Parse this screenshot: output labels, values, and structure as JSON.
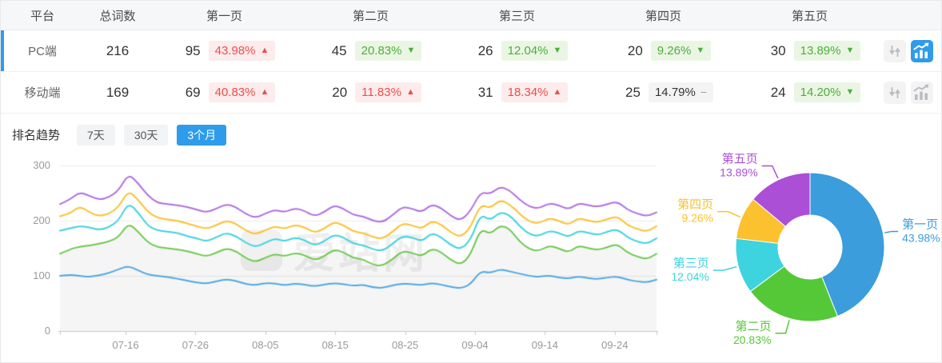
{
  "colors": {
    "accent": "#2f9ceb",
    "up_red": "#ef4c4c",
    "up_red_bg": "#fdecec",
    "down_green": "#4cae3f",
    "down_green_bg": "#eaf6e3",
    "flat_gray_bg": "#f4f4f4"
  },
  "table": {
    "columns": [
      "平台",
      "总词数",
      "第一页",
      "第二页",
      "第三页",
      "第四页",
      "第五页"
    ],
    "rows": [
      {
        "platform": "PC端",
        "total": "216",
        "selected": true,
        "trend_active": true,
        "pages": [
          {
            "count": "95",
            "pct": "43.98%",
            "dir": "up",
            "tone": "red"
          },
          {
            "count": "45",
            "pct": "20.83%",
            "dir": "down",
            "tone": "green"
          },
          {
            "count": "26",
            "pct": "12.04%",
            "dir": "down",
            "tone": "green"
          },
          {
            "count": "20",
            "pct": "9.26%",
            "dir": "down",
            "tone": "green"
          },
          {
            "count": "30",
            "pct": "13.89%",
            "dir": "down",
            "tone": "green"
          }
        ]
      },
      {
        "platform": "移动端",
        "total": "169",
        "selected": false,
        "trend_active": false,
        "pages": [
          {
            "count": "69",
            "pct": "40.83%",
            "dir": "up",
            "tone": "red"
          },
          {
            "count": "20",
            "pct": "11.83%",
            "dir": "up",
            "tone": "red"
          },
          {
            "count": "31",
            "pct": "18.34%",
            "dir": "up",
            "tone": "red"
          },
          {
            "count": "25",
            "pct": "14.79%",
            "dir": "flat",
            "tone": "gray"
          },
          {
            "count": "24",
            "pct": "14.20%",
            "dir": "down",
            "tone": "green"
          }
        ]
      }
    ]
  },
  "trend": {
    "title": "排名趋势",
    "tabs": [
      {
        "label": "7天",
        "active": false
      },
      {
        "label": "30天",
        "active": false
      },
      {
        "label": "3个月",
        "active": true
      }
    ]
  },
  "watermark": {
    "text": "爱站网"
  },
  "chart_data": [
    {
      "type": "line",
      "title": "排名趋势 3个月",
      "x_ticks": [
        "07-16",
        "07-26",
        "08-05",
        "08-15",
        "08-25",
        "09-04",
        "09-14",
        "09-24"
      ],
      "yticks": [
        0,
        100,
        200,
        300
      ],
      "ylim": [
        0,
        300
      ],
      "grid": true,
      "legend_position": "none",
      "series": [
        {
          "name": "第一页",
          "color": "#4fa7e3",
          "fill": false,
          "values": [
            100,
            102,
            100,
            98,
            101,
            105,
            112,
            118,
            110,
            102,
            100,
            98,
            95,
            91,
            88,
            86,
            90,
            94,
            91,
            85,
            83,
            87,
            86,
            83,
            86,
            84,
            81,
            84,
            87,
            85,
            82,
            84,
            79,
            78,
            83,
            86,
            85,
            83,
            87,
            84,
            80,
            77,
            85,
            109,
            105,
            112,
            108,
            104,
            100,
            98,
            101,
            97,
            95,
            99,
            96,
            94,
            97,
            99,
            93,
            90,
            88,
            93
          ]
        },
        {
          "name": "第二页",
          "color": "#6cc94e",
          "fill": true,
          "values": [
            140,
            148,
            153,
            155,
            158,
            162,
            170,
            196,
            180,
            160,
            152,
            150,
            148,
            145,
            140,
            135,
            142,
            150,
            145,
            132,
            125,
            133,
            140,
            135,
            142,
            138,
            128,
            135,
            148,
            143,
            132,
            130,
            120,
            118,
            130,
            145,
            142,
            135,
            150,
            143,
            128,
            120,
            138,
            186,
            175,
            192,
            185,
            162,
            148,
            145,
            155,
            150,
            142,
            155,
            150,
            147,
            152,
            158,
            142,
            135,
            130,
            140
          ]
        },
        {
          "name": "第三页",
          "color": "#3dd3df",
          "fill": false,
          "values": [
            182,
            186,
            190,
            188,
            183,
            188,
            200,
            233,
            215,
            190,
            182,
            180,
            178,
            172,
            168,
            162,
            170,
            178,
            172,
            160,
            152,
            160,
            168,
            162,
            170,
            165,
            155,
            162,
            175,
            170,
            158,
            156,
            148,
            145,
            158,
            172,
            170,
            162,
            178,
            170,
            155,
            148,
            165,
            212,
            200,
            216,
            210,
            190,
            175,
            172,
            182,
            178,
            170,
            182,
            178,
            174,
            180,
            185,
            170,
            162,
            158,
            168
          ]
        },
        {
          "name": "第四页",
          "color": "#fbc12f",
          "fill": false,
          "values": [
            208,
            212,
            227,
            215,
            208,
            212,
            225,
            255,
            238,
            215,
            205,
            202,
            200,
            195,
            190,
            185,
            192,
            200,
            195,
            182,
            175,
            183,
            190,
            185,
            193,
            188,
            178,
            185,
            198,
            192,
            180,
            178,
            170,
            167,
            180,
            195,
            192,
            185,
            200,
            193,
            178,
            170,
            188,
            230,
            222,
            238,
            230,
            212,
            198,
            195,
            205,
            200,
            192,
            205,
            200,
            197,
            203,
            208,
            192,
            185,
            180,
            190
          ]
        },
        {
          "name": "第五页",
          "color": "#b06fe0",
          "fill": false,
          "values": [
            230,
            238,
            252,
            245,
            238,
            242,
            255,
            285,
            268,
            245,
            232,
            230,
            228,
            225,
            220,
            215,
            222,
            230,
            225,
            212,
            205,
            213,
            220,
            215,
            223,
            218,
            208,
            215,
            228,
            222,
            210,
            208,
            200,
            197,
            210,
            225,
            222,
            215,
            230,
            223,
            208,
            200,
            218,
            252,
            248,
            262,
            255,
            238,
            225,
            222,
            232,
            228,
            220,
            232,
            228,
            225,
            230,
            235,
            220,
            213,
            208,
            215
          ]
        }
      ]
    },
    {
      "type": "pie",
      "donut": true,
      "inner_radius_ratio": 0.43,
      "slices": [
        {
          "label": "第一页",
          "value": 43.98,
          "display": "43.98%",
          "color": "#3b9ddb"
        },
        {
          "label": "第二页",
          "value": 20.83,
          "display": "20.83%",
          "color": "#55c838"
        },
        {
          "label": "第三页",
          "value": 12.04,
          "display": "12.04%",
          "color": "#3dd3df"
        },
        {
          "label": "第四页",
          "value": 9.26,
          "display": "9.26%",
          "color": "#fbc12f"
        },
        {
          "label": "第五页",
          "value": 13.89,
          "display": "13.89%",
          "color": "#ab4fd6"
        }
      ]
    }
  ]
}
